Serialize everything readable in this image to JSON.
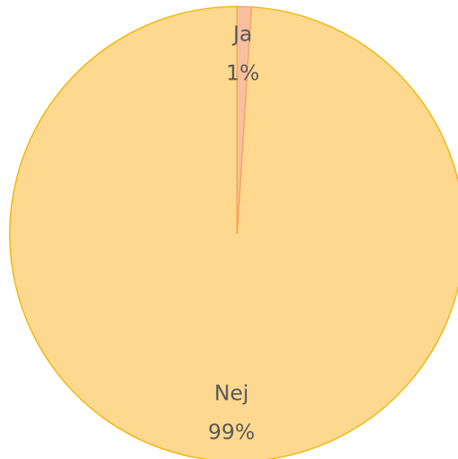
{
  "chart_data": {
    "type": "pie",
    "categories": [
      "Ja",
      "Nej"
    ],
    "values": [
      1,
      99
    ],
    "value_labels": [
      "1%",
      "99%"
    ],
    "colors": [
      "#f8c0a0",
      "#fdd88e"
    ],
    "stroke_colors": [
      "#f4a460",
      "#f0b400"
    ]
  }
}
